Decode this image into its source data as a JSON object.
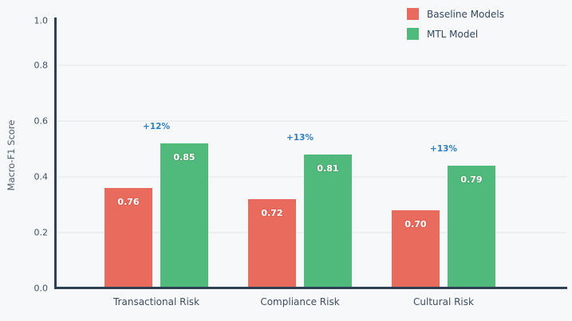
{
  "colors": {
    "background": "#f7f8fa",
    "baseline_series": "#e96b5e",
    "mtl_series": "#4fba7b",
    "annotation_blue": "#2e7fc2",
    "axis_line": "#2e4152",
    "tick_text": "#3d4f61",
    "gridline": "#eceff2",
    "bar_value_text": "#ffffff"
  },
  "y_axis": {
    "label": "Macro-F1 Score"
  },
  "legend": {
    "items": [
      {
        "label": "Baseline Models",
        "color": "#e96b5e"
      },
      {
        "label": "MTL Model",
        "color": "#4fba7b"
      }
    ]
  },
  "chart_data": {
    "type": "bar",
    "title": "",
    "xlabel": "",
    "ylabel": "Macro-F1 Score",
    "categories": [
      "Transactional Risk",
      "Compliance Risk",
      "Cultural Risk"
    ],
    "series": [
      {
        "name": "Baseline Models",
        "color": "#e96b5e",
        "values": [
          0.76,
          0.72,
          0.7
        ],
        "plotted_bar_fractions": [
          0.36,
          0.32,
          0.28
        ]
      },
      {
        "name": "MTL Model",
        "color": "#4fba7b",
        "values": [
          0.85,
          0.81,
          0.79
        ],
        "plotted_bar_fractions": [
          0.52,
          0.48,
          0.44
        ]
      }
    ],
    "annotations": [
      "+12%",
      "+13%",
      "+13%"
    ],
    "ylim": [
      0.0,
      1.0
    ],
    "yticks": [
      0.0,
      0.2,
      0.4,
      0.6,
      0.8,
      1.0
    ],
    "grid": true,
    "legend_position": "top-right"
  }
}
